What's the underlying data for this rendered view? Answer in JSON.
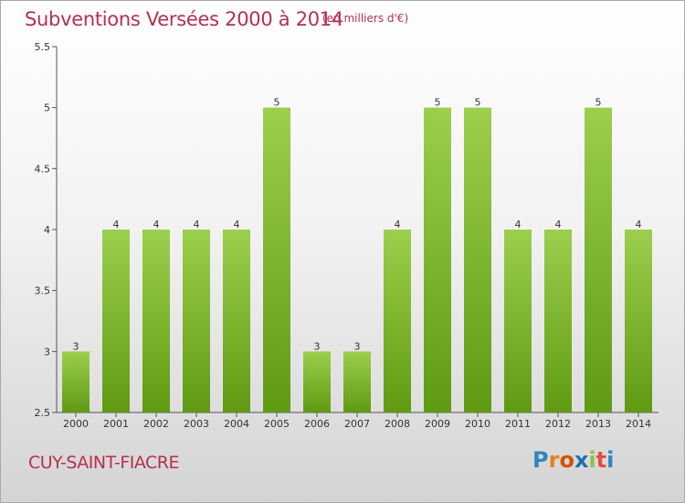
{
  "header": {
    "title": "Subventions Versées 2000 à 2014",
    "subtitle": "(en milliers d'€)"
  },
  "footer": {
    "commune": "CUY-SAINT-FIACRE",
    "logo": [
      "P",
      "r",
      "o",
      "x",
      "i",
      "t",
      "i"
    ]
  },
  "colors": {
    "title": "#b5304f",
    "bar_top": "#9ccf4c",
    "bar_bottom": "#5f9a12",
    "logo": [
      "#2e86c1",
      "#e67e22",
      "#d35400",
      "#1f6fb2",
      "#8bc34a",
      "#e74c3c",
      "#2e86c1"
    ]
  },
  "chart_data": {
    "type": "bar",
    "title": "Subventions Versées 2000 à 2014",
    "subtitle": "(en milliers d'€)",
    "categories": [
      "2000",
      "2001",
      "2002",
      "2003",
      "2004",
      "2005",
      "2006",
      "2007",
      "2008",
      "2009",
      "2010",
      "2011",
      "2012",
      "2013",
      "2014"
    ],
    "values": [
      3,
      4,
      4,
      4,
      4,
      5,
      3,
      3,
      4,
      5,
      5,
      4,
      4,
      5,
      4
    ],
    "ylim": [
      2.5,
      5.5
    ],
    "yticks": [
      "2.5",
      "3",
      "3.5",
      "4",
      "4.5",
      "5",
      "5.5"
    ],
    "grid": false
  }
}
